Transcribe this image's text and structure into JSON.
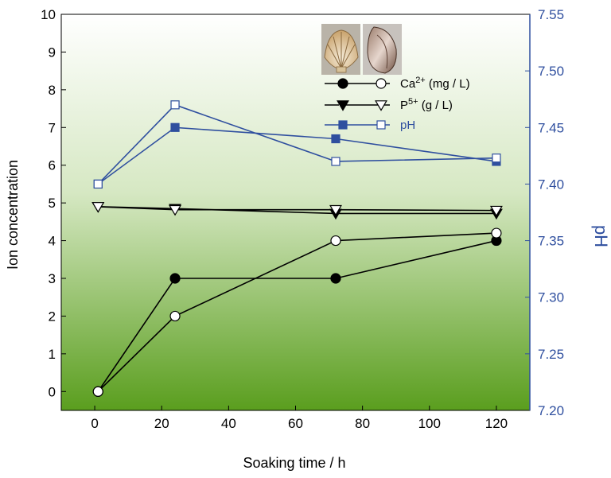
{
  "chart_data": {
    "type": "line",
    "xlabel": "Soaking time / h",
    "ylabel": "Ion concentration",
    "y2label": "pH",
    "xlim": [
      -10,
      130
    ],
    "ylim": [
      -0.5,
      10
    ],
    "y2lim": [
      7.2,
      7.55
    ],
    "xticks": [
      0,
      20,
      40,
      60,
      80,
      100,
      120
    ],
    "yticks": [
      0,
      1,
      2,
      3,
      4,
      5,
      6,
      7,
      8,
      9,
      10
    ],
    "y2ticks": [
      "7.20",
      "7.25",
      "7.30",
      "7.35",
      "7.40",
      "7.45",
      "7.50",
      "7.55"
    ],
    "background": "vertical gradient white to green",
    "legend_position": "top-right",
    "colors": {
      "black": "#000000",
      "blue": "#2f4f9f",
      "green": "#5a9e1e"
    },
    "series": [
      {
        "legend_label": "Ca",
        "legend_sup": "2+",
        "legend_unit": "(mg / L)",
        "variant": "filled",
        "marker": "circle",
        "axis": "left",
        "color": "#000000",
        "x": [
          1,
          24,
          72,
          120
        ],
        "y": [
          0,
          3,
          3,
          4
        ]
      },
      {
        "variant": "open",
        "marker": "circle",
        "axis": "left",
        "color": "#000000",
        "x": [
          1,
          24,
          72,
          120
        ],
        "y": [
          0,
          2,
          4,
          4.2
        ]
      },
      {
        "legend_label": "P",
        "legend_sup": "5+",
        "legend_unit": "(g / L)",
        "variant": "filled",
        "marker": "triangle-down",
        "axis": "left",
        "color": "#000000",
        "x": [
          1,
          24,
          72,
          120
        ],
        "y": [
          4.9,
          4.85,
          4.72,
          4.72
        ]
      },
      {
        "variant": "open",
        "marker": "triangle-down",
        "axis": "left",
        "color": "#000000",
        "x": [
          1,
          24,
          72,
          120
        ],
        "y": [
          4.9,
          4.82,
          4.82,
          4.8
        ]
      },
      {
        "legend_label": "pH",
        "variant": "filled",
        "marker": "square",
        "axis": "right",
        "color": "#2f4f9f",
        "x": [
          1,
          24,
          72,
          120
        ],
        "y": [
          7.4,
          7.45,
          7.44,
          7.42
        ]
      },
      {
        "variant": "open",
        "marker": "square",
        "axis": "right",
        "color": "#2f4f9f",
        "x": [
          1,
          24,
          72,
          120
        ],
        "y": [
          7.4,
          7.47,
          7.42,
          7.423
        ]
      }
    ],
    "legend": [
      {
        "label": "Ca",
        "sup": "2+",
        "unit": "(mg / L)",
        "marker": "circle",
        "color": "#000000",
        "text_color": "#000000"
      },
      {
        "label": "P",
        "sup": "5+",
        "unit": "(g / L)",
        "marker": "triangle-down",
        "color": "#000000",
        "text_color": "#000000"
      },
      {
        "label": "pH",
        "sup": "",
        "unit": "",
        "marker": "square",
        "color": "#2f4f9f",
        "text_color": "#2f4f9f"
      }
    ],
    "inset_images": [
      "scallop-shell",
      "mussel-shell"
    ]
  }
}
